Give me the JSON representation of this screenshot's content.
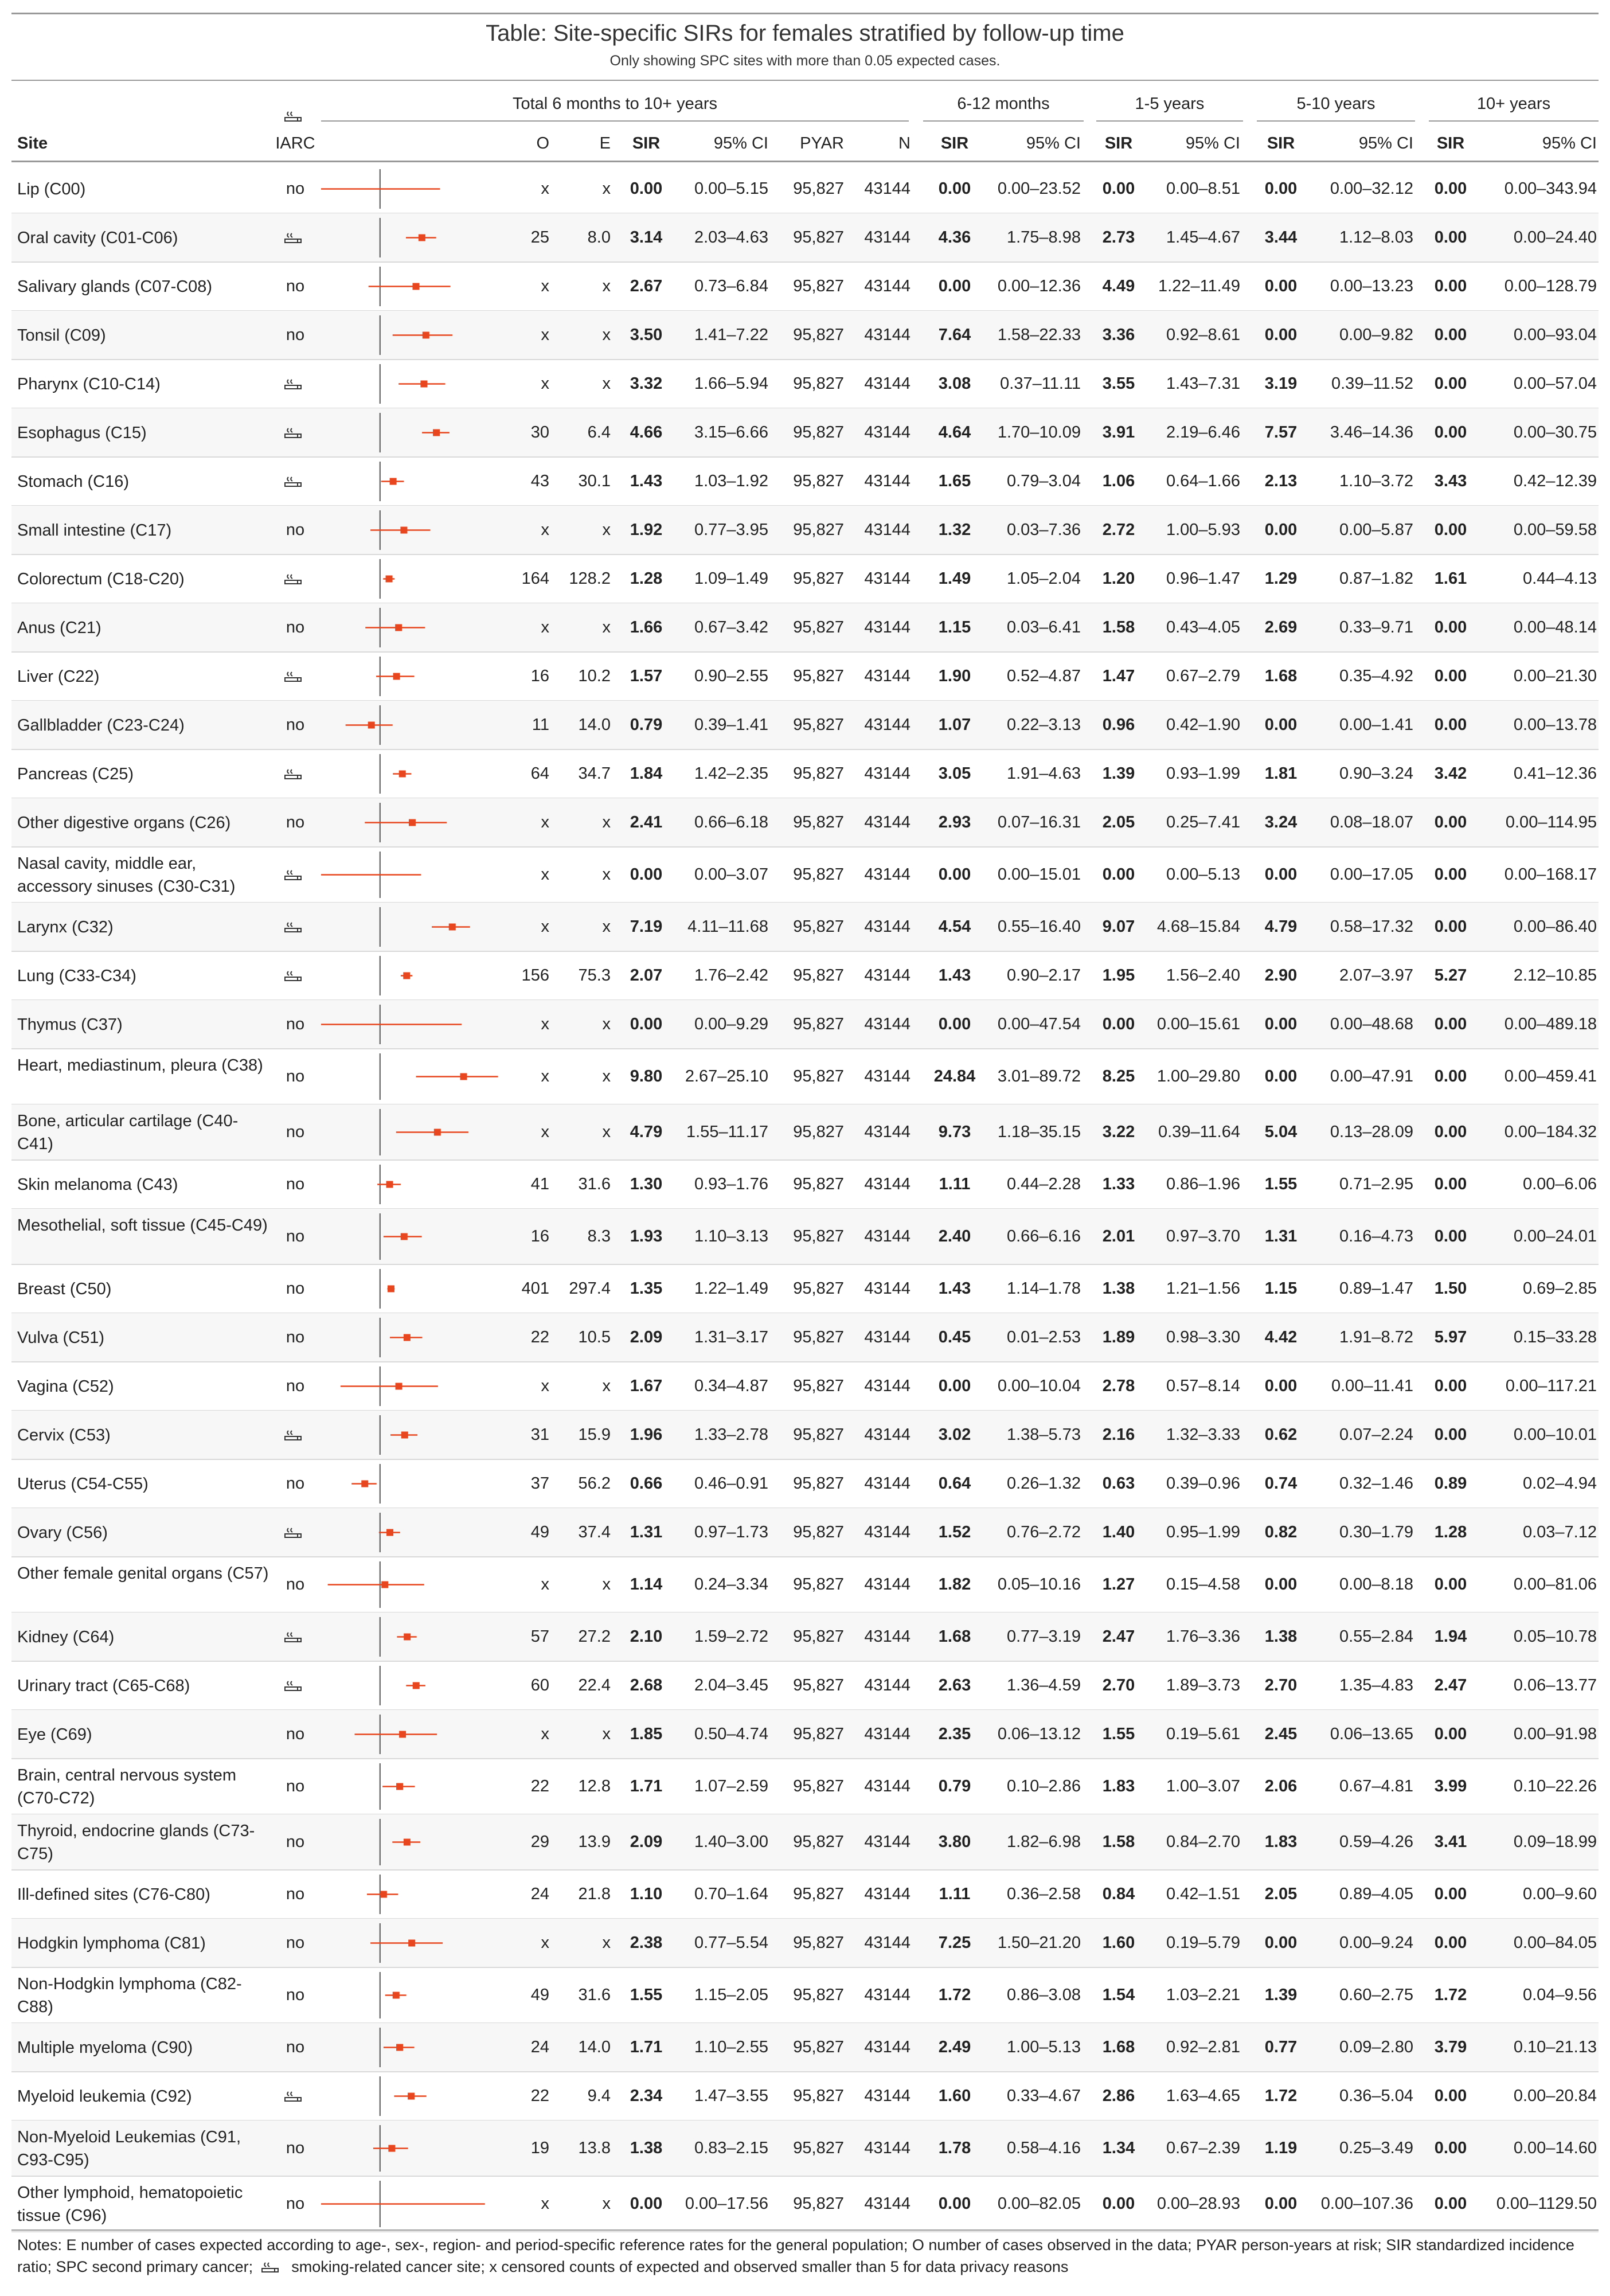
{
  "title": "Table: Site-specific SIRs for females stratified by follow-up time",
  "subtitle": "Only showing SPC sites with more than 0.05 expected cases.",
  "groups": {
    "total": "Total 6 months to 10+ years",
    "g1": "6-12 months",
    "g2": "1-5 years",
    "g3": "5-10 years",
    "g4": "10+ years"
  },
  "columns": {
    "site": "Site",
    "iarc": "IARC",
    "o": "O",
    "e": "E",
    "sir": "SIR",
    "ci": "95% CI",
    "pyar": "PYAR",
    "n": "N"
  },
  "icons": {
    "smoking": "smoking-icon"
  },
  "colors": {
    "marker": "#e8461e",
    "ref_line": "#555555",
    "rule": "#999999",
    "row_line": "#d9d9d9"
  },
  "forest_data": {
    "type": "forest",
    "xscale": "log",
    "reference_value": 1
  },
  "rows": [
    {
      "site": "Lip (C00)",
      "iarc": "no",
      "o": "x",
      "e": "x",
      "sir": "0.00",
      "ci": "0.00–5.15",
      "pyar": "95,827",
      "n": "43144",
      "sir1": "0.00",
      "ci1": "0.00–23.52",
      "sir2": "0.00",
      "ci2": "0.00–8.51",
      "sir3": "0.00",
      "ci3": "0.00–32.12",
      "sir4": "0.00",
      "ci4": "0.00–343.94"
    },
    {
      "site": "Oral cavity (C01-C06)",
      "iarc": "smoking",
      "o": "25",
      "e": "8.0",
      "sir": "3.14",
      "ci": "2.03–4.63",
      "pyar": "95,827",
      "n": "43144",
      "sir1": "4.36",
      "ci1": "1.75–8.98",
      "sir2": "2.73",
      "ci2": "1.45–4.67",
      "sir3": "3.44",
      "ci3": "1.12–8.03",
      "sir4": "0.00",
      "ci4": "0.00–24.40"
    },
    {
      "site": "Salivary glands (C07-C08)",
      "iarc": "no",
      "o": "x",
      "e": "x",
      "sir": "2.67",
      "ci": "0.73–6.84",
      "pyar": "95,827",
      "n": "43144",
      "sir1": "0.00",
      "ci1": "0.00–12.36",
      "sir2": "4.49",
      "ci2": "1.22–11.49",
      "sir3": "0.00",
      "ci3": "0.00–13.23",
      "sir4": "0.00",
      "ci4": "0.00–128.79"
    },
    {
      "site": "Tonsil (C09)",
      "iarc": "no",
      "o": "x",
      "e": "x",
      "sir": "3.50",
      "ci": "1.41–7.22",
      "pyar": "95,827",
      "n": "43144",
      "sir1": "7.64",
      "ci1": "1.58–22.33",
      "sir2": "3.36",
      "ci2": "0.92–8.61",
      "sir3": "0.00",
      "ci3": "0.00–9.82",
      "sir4": "0.00",
      "ci4": "0.00–93.04"
    },
    {
      "site": "Pharynx (C10-C14)",
      "iarc": "smoking",
      "o": "x",
      "e": "x",
      "sir": "3.32",
      "ci": "1.66–5.94",
      "pyar": "95,827",
      "n": "43144",
      "sir1": "3.08",
      "ci1": "0.37–11.11",
      "sir2": "3.55",
      "ci2": "1.43–7.31",
      "sir3": "3.19",
      "ci3": "0.39–11.52",
      "sir4": "0.00",
      "ci4": "0.00–57.04"
    },
    {
      "site": "Esophagus (C15)",
      "iarc": "smoking",
      "o": "30",
      "e": "6.4",
      "sir": "4.66",
      "ci": "3.15–6.66",
      "pyar": "95,827",
      "n": "43144",
      "sir1": "4.64",
      "ci1": "1.70–10.09",
      "sir2": "3.91",
      "ci2": "2.19–6.46",
      "sir3": "7.57",
      "ci3": "3.46–14.36",
      "sir4": "0.00",
      "ci4": "0.00–30.75"
    },
    {
      "site": "Stomach (C16)",
      "iarc": "smoking",
      "o": "43",
      "e": "30.1",
      "sir": "1.43",
      "ci": "1.03–1.92",
      "pyar": "95,827",
      "n": "43144",
      "sir1": "1.65",
      "ci1": "0.79–3.04",
      "sir2": "1.06",
      "ci2": "0.64–1.66",
      "sir3": "2.13",
      "ci3": "1.10–3.72",
      "sir4": "3.43",
      "ci4": "0.42–12.39"
    },
    {
      "site": "Small intestine (C17)",
      "iarc": "no",
      "o": "x",
      "e": "x",
      "sir": "1.92",
      "ci": "0.77–3.95",
      "pyar": "95,827",
      "n": "43144",
      "sir1": "1.32",
      "ci1": "0.03–7.36",
      "sir2": "2.72",
      "ci2": "1.00–5.93",
      "sir3": "0.00",
      "ci3": "0.00–5.87",
      "sir4": "0.00",
      "ci4": "0.00–59.58"
    },
    {
      "site": "Colorectum (C18-C20)",
      "iarc": "smoking",
      "o": "164",
      "e": "128.2",
      "sir": "1.28",
      "ci": "1.09–1.49",
      "pyar": "95,827",
      "n": "43144",
      "sir1": "1.49",
      "ci1": "1.05–2.04",
      "sir2": "1.20",
      "ci2": "0.96–1.47",
      "sir3": "1.29",
      "ci3": "0.87–1.82",
      "sir4": "1.61",
      "ci4": "0.44–4.13"
    },
    {
      "site": "Anus (C21)",
      "iarc": "no",
      "o": "x",
      "e": "x",
      "sir": "1.66",
      "ci": "0.67–3.42",
      "pyar": "95,827",
      "n": "43144",
      "sir1": "1.15",
      "ci1": "0.03–6.41",
      "sir2": "1.58",
      "ci2": "0.43–4.05",
      "sir3": "2.69",
      "ci3": "0.33–9.71",
      "sir4": "0.00",
      "ci4": "0.00–48.14"
    },
    {
      "site": "Liver (C22)",
      "iarc": "smoking",
      "o": "16",
      "e": "10.2",
      "sir": "1.57",
      "ci": "0.90–2.55",
      "pyar": "95,827",
      "n": "43144",
      "sir1": "1.90",
      "ci1": "0.52–4.87",
      "sir2": "1.47",
      "ci2": "0.67–2.79",
      "sir3": "1.68",
      "ci3": "0.35–4.92",
      "sir4": "0.00",
      "ci4": "0.00–21.30"
    },
    {
      "site": "Gallbladder (C23-C24)",
      "iarc": "no",
      "o": "11",
      "e": "14.0",
      "sir": "0.79",
      "ci": "0.39–1.41",
      "pyar": "95,827",
      "n": "43144",
      "sir1": "1.07",
      "ci1": "0.22–3.13",
      "sir2": "0.96",
      "ci2": "0.42–1.90",
      "sir3": "0.00",
      "ci3": "0.00–1.41",
      "sir4": "0.00",
      "ci4": "0.00–13.78"
    },
    {
      "site": "Pancreas (C25)",
      "iarc": "smoking",
      "o": "64",
      "e": "34.7",
      "sir": "1.84",
      "ci": "1.42–2.35",
      "pyar": "95,827",
      "n": "43144",
      "sir1": "3.05",
      "ci1": "1.91–4.63",
      "sir2": "1.39",
      "ci2": "0.93–1.99",
      "sir3": "1.81",
      "ci3": "0.90–3.24",
      "sir4": "3.42",
      "ci4": "0.41–12.36"
    },
    {
      "site": "Other digestive organs (C26)",
      "iarc": "no",
      "o": "x",
      "e": "x",
      "sir": "2.41",
      "ci": "0.66–6.18",
      "pyar": "95,827",
      "n": "43144",
      "sir1": "2.93",
      "ci1": "0.07–16.31",
      "sir2": "2.05",
      "ci2": "0.25–7.41",
      "sir3": "3.24",
      "ci3": "0.08–18.07",
      "sir4": "0.00",
      "ci4": "0.00–114.95"
    },
    {
      "site": "Nasal cavity, middle ear, accessory sinuses (C30-C31)",
      "iarc": "smoking",
      "o": "x",
      "e": "x",
      "sir": "0.00",
      "ci": "0.00–3.07",
      "pyar": "95,827",
      "n": "43144",
      "sir1": "0.00",
      "ci1": "0.00–15.01",
      "sir2": "0.00",
      "ci2": "0.00–5.13",
      "sir3": "0.00",
      "ci3": "0.00–17.05",
      "sir4": "0.00",
      "ci4": "0.00–168.17"
    },
    {
      "site": "Larynx (C32)",
      "iarc": "smoking",
      "o": "x",
      "e": "x",
      "sir": "7.19",
      "ci": "4.11–11.68",
      "pyar": "95,827",
      "n": "43144",
      "sir1": "4.54",
      "ci1": "0.55–16.40",
      "sir2": "9.07",
      "ci2": "4.68–15.84",
      "sir3": "4.79",
      "ci3": "0.58–17.32",
      "sir4": "0.00",
      "ci4": "0.00–86.40"
    },
    {
      "site": "Lung (C33-C34)",
      "iarc": "smoking",
      "o": "156",
      "e": "75.3",
      "sir": "2.07",
      "ci": "1.76–2.42",
      "pyar": "95,827",
      "n": "43144",
      "sir1": "1.43",
      "ci1": "0.90–2.17",
      "sir2": "1.95",
      "ci2": "1.56–2.40",
      "sir3": "2.90",
      "ci3": "2.07–3.97",
      "sir4": "5.27",
      "ci4": "2.12–10.85"
    },
    {
      "site": "Thymus (C37)",
      "iarc": "no",
      "o": "x",
      "e": "x",
      "sir": "0.00",
      "ci": "0.00–9.29",
      "pyar": "95,827",
      "n": "43144",
      "sir1": "0.00",
      "ci1": "0.00–47.54",
      "sir2": "0.00",
      "ci2": "0.00–15.61",
      "sir3": "0.00",
      "ci3": "0.00–48.68",
      "sir4": "0.00",
      "ci4": "0.00–489.18"
    },
    {
      "site": "Heart, mediastinum, pleura (C38)",
      "iarc": "no",
      "o": "x",
      "e": "x",
      "sir": "9.80",
      "ci": "2.67–25.10",
      "pyar": "95,827",
      "n": "43144",
      "sir1": "24.84",
      "ci1": "3.01–89.72",
      "sir2": "8.25",
      "ci2": "1.00–29.80",
      "sir3": "0.00",
      "ci3": "0.00–47.91",
      "sir4": "0.00",
      "ci4": "0.00–459.41"
    },
    {
      "site": "Bone, articular cartilage (C40-C41)",
      "iarc": "no",
      "o": "x",
      "e": "x",
      "sir": "4.79",
      "ci": "1.55–11.17",
      "pyar": "95,827",
      "n": "43144",
      "sir1": "9.73",
      "ci1": "1.18–35.15",
      "sir2": "3.22",
      "ci2": "0.39–11.64",
      "sir3": "5.04",
      "ci3": "0.13–28.09",
      "sir4": "0.00",
      "ci4": "0.00–184.32"
    },
    {
      "site": "Skin melanoma (C43)",
      "iarc": "no",
      "o": "41",
      "e": "31.6",
      "sir": "1.30",
      "ci": "0.93–1.76",
      "pyar": "95,827",
      "n": "43144",
      "sir1": "1.11",
      "ci1": "0.44–2.28",
      "sir2": "1.33",
      "ci2": "0.86–1.96",
      "sir3": "1.55",
      "ci3": "0.71–2.95",
      "sir4": "0.00",
      "ci4": "0.00–6.06"
    },
    {
      "site": "Mesothelial, soft tissue (C45-C49)",
      "iarc": "no",
      "o": "16",
      "e": "8.3",
      "sir": "1.93",
      "ci": "1.10–3.13",
      "pyar": "95,827",
      "n": "43144",
      "sir1": "2.40",
      "ci1": "0.66–6.16",
      "sir2": "2.01",
      "ci2": "0.97–3.70",
      "sir3": "1.31",
      "ci3": "0.16–4.73",
      "sir4": "0.00",
      "ci4": "0.00–24.01"
    },
    {
      "site": "Breast (C50)",
      "iarc": "no",
      "o": "401",
      "e": "297.4",
      "sir": "1.35",
      "ci": "1.22–1.49",
      "pyar": "95,827",
      "n": "43144",
      "sir1": "1.43",
      "ci1": "1.14–1.78",
      "sir2": "1.38",
      "ci2": "1.21–1.56",
      "sir3": "1.15",
      "ci3": "0.89–1.47",
      "sir4": "1.50",
      "ci4": "0.69–2.85"
    },
    {
      "site": "Vulva (C51)",
      "iarc": "no",
      "o": "22",
      "e": "10.5",
      "sir": "2.09",
      "ci": "1.31–3.17",
      "pyar": "95,827",
      "n": "43144",
      "sir1": "0.45",
      "ci1": "0.01–2.53",
      "sir2": "1.89",
      "ci2": "0.98–3.30",
      "sir3": "4.42",
      "ci3": "1.91–8.72",
      "sir4": "5.97",
      "ci4": "0.15–33.28"
    },
    {
      "site": "Vagina (C52)",
      "iarc": "no",
      "o": "x",
      "e": "x",
      "sir": "1.67",
      "ci": "0.34–4.87",
      "pyar": "95,827",
      "n": "43144",
      "sir1": "0.00",
      "ci1": "0.00–10.04",
      "sir2": "2.78",
      "ci2": "0.57–8.14",
      "sir3": "0.00",
      "ci3": "0.00–11.41",
      "sir4": "0.00",
      "ci4": "0.00–117.21"
    },
    {
      "site": "Cervix (C53)",
      "iarc": "smoking",
      "o": "31",
      "e": "15.9",
      "sir": "1.96",
      "ci": "1.33–2.78",
      "pyar": "95,827",
      "n": "43144",
      "sir1": "3.02",
      "ci1": "1.38–5.73",
      "sir2": "2.16",
      "ci2": "1.32–3.33",
      "sir3": "0.62",
      "ci3": "0.07–2.24",
      "sir4": "0.00",
      "ci4": "0.00–10.01"
    },
    {
      "site": "Uterus (C54-C55)",
      "iarc": "no",
      "o": "37",
      "e": "56.2",
      "sir": "0.66",
      "ci": "0.46–0.91",
      "pyar": "95,827",
      "n": "43144",
      "sir1": "0.64",
      "ci1": "0.26–1.32",
      "sir2": "0.63",
      "ci2": "0.39–0.96",
      "sir3": "0.74",
      "ci3": "0.32–1.46",
      "sir4": "0.89",
      "ci4": "0.02–4.94"
    },
    {
      "site": "Ovary (C56)",
      "iarc": "smoking",
      "o": "49",
      "e": "37.4",
      "sir": "1.31",
      "ci": "0.97–1.73",
      "pyar": "95,827",
      "n": "43144",
      "sir1": "1.52",
      "ci1": "0.76–2.72",
      "sir2": "1.40",
      "ci2": "0.95–1.99",
      "sir3": "0.82",
      "ci3": "0.30–1.79",
      "sir4": "1.28",
      "ci4": "0.03–7.12"
    },
    {
      "site": "Other female genital organs (C57)",
      "iarc": "no",
      "o": "x",
      "e": "x",
      "sir": "1.14",
      "ci": "0.24–3.34",
      "pyar": "95,827",
      "n": "43144",
      "sir1": "1.82",
      "ci1": "0.05–10.16",
      "sir2": "1.27",
      "ci2": "0.15–4.58",
      "sir3": "0.00",
      "ci3": "0.00–8.18",
      "sir4": "0.00",
      "ci4": "0.00–81.06"
    },
    {
      "site": "Kidney (C64)",
      "iarc": "smoking",
      "o": "57",
      "e": "27.2",
      "sir": "2.10",
      "ci": "1.59–2.72",
      "pyar": "95,827",
      "n": "43144",
      "sir1": "1.68",
      "ci1": "0.77–3.19",
      "sir2": "2.47",
      "ci2": "1.76–3.36",
      "sir3": "1.38",
      "ci3": "0.55–2.84",
      "sir4": "1.94",
      "ci4": "0.05–10.78"
    },
    {
      "site": "Urinary tract (C65-C68)",
      "iarc": "smoking",
      "o": "60",
      "e": "22.4",
      "sir": "2.68",
      "ci": "2.04–3.45",
      "pyar": "95,827",
      "n": "43144",
      "sir1": "2.63",
      "ci1": "1.36–4.59",
      "sir2": "2.70",
      "ci2": "1.89–3.73",
      "sir3": "2.70",
      "ci3": "1.35–4.83",
      "sir4": "2.47",
      "ci4": "0.06–13.77"
    },
    {
      "site": "Eye (C69)",
      "iarc": "no",
      "o": "x",
      "e": "x",
      "sir": "1.85",
      "ci": "0.50–4.74",
      "pyar": "95,827",
      "n": "43144",
      "sir1": "2.35",
      "ci1": "0.06–13.12",
      "sir2": "1.55",
      "ci2": "0.19–5.61",
      "sir3": "2.45",
      "ci3": "0.06–13.65",
      "sir4": "0.00",
      "ci4": "0.00–91.98"
    },
    {
      "site": "Brain, central nervous system (C70-C72)",
      "iarc": "no",
      "o": "22",
      "e": "12.8",
      "sir": "1.71",
      "ci": "1.07–2.59",
      "pyar": "95,827",
      "n": "43144",
      "sir1": "0.79",
      "ci1": "0.10–2.86",
      "sir2": "1.83",
      "ci2": "1.00–3.07",
      "sir3": "2.06",
      "ci3": "0.67–4.81",
      "sir4": "3.99",
      "ci4": "0.10–22.26"
    },
    {
      "site": "Thyroid, endocrine glands (C73-C75)",
      "iarc": "no",
      "o": "29",
      "e": "13.9",
      "sir": "2.09",
      "ci": "1.40–3.00",
      "pyar": "95,827",
      "n": "43144",
      "sir1": "3.80",
      "ci1": "1.82–6.98",
      "sir2": "1.58",
      "ci2": "0.84–2.70",
      "sir3": "1.83",
      "ci3": "0.59–4.26",
      "sir4": "3.41",
      "ci4": "0.09–18.99"
    },
    {
      "site": "Ill-defined sites (C76-C80)",
      "iarc": "no",
      "o": "24",
      "e": "21.8",
      "sir": "1.10",
      "ci": "0.70–1.64",
      "pyar": "95,827",
      "n": "43144",
      "sir1": "1.11",
      "ci1": "0.36–2.58",
      "sir2": "0.84",
      "ci2": "0.42–1.51",
      "sir3": "2.05",
      "ci3": "0.89–4.05",
      "sir4": "0.00",
      "ci4": "0.00–9.60"
    },
    {
      "site": "Hodgkin lymphoma (C81)",
      "iarc": "no",
      "o": "x",
      "e": "x",
      "sir": "2.38",
      "ci": "0.77–5.54",
      "pyar": "95,827",
      "n": "43144",
      "sir1": "7.25",
      "ci1": "1.50–21.20",
      "sir2": "1.60",
      "ci2": "0.19–5.79",
      "sir3": "0.00",
      "ci3": "0.00–9.24",
      "sir4": "0.00",
      "ci4": "0.00–84.05"
    },
    {
      "site": "Non-Hodgkin lymphoma (C82-C88)",
      "iarc": "no",
      "o": "49",
      "e": "31.6",
      "sir": "1.55",
      "ci": "1.15–2.05",
      "pyar": "95,827",
      "n": "43144",
      "sir1": "1.72",
      "ci1": "0.86–3.08",
      "sir2": "1.54",
      "ci2": "1.03–2.21",
      "sir3": "1.39",
      "ci3": "0.60–2.75",
      "sir4": "1.72",
      "ci4": "0.04–9.56"
    },
    {
      "site": "Multiple myeloma (C90)",
      "iarc": "no",
      "o": "24",
      "e": "14.0",
      "sir": "1.71",
      "ci": "1.10–2.55",
      "pyar": "95,827",
      "n": "43144",
      "sir1": "2.49",
      "ci1": "1.00–5.13",
      "sir2": "1.68",
      "ci2": "0.92–2.81",
      "sir3": "0.77",
      "ci3": "0.09–2.80",
      "sir4": "3.79",
      "ci4": "0.10–21.13"
    },
    {
      "site": "Myeloid leukemia (C92)",
      "iarc": "smoking",
      "o": "22",
      "e": "9.4",
      "sir": "2.34",
      "ci": "1.47–3.55",
      "pyar": "95,827",
      "n": "43144",
      "sir1": "1.60",
      "ci1": "0.33–4.67",
      "sir2": "2.86",
      "ci2": "1.63–4.65",
      "sir3": "1.72",
      "ci3": "0.36–5.04",
      "sir4": "0.00",
      "ci4": "0.00–20.84"
    },
    {
      "site": "Non-Myeloid Leukemias (C91, C93-C95)",
      "iarc": "no",
      "o": "19",
      "e": "13.8",
      "sir": "1.38",
      "ci": "0.83–2.15",
      "pyar": "95,827",
      "n": "43144",
      "sir1": "1.78",
      "ci1": "0.58–4.16",
      "sir2": "1.34",
      "ci2": "0.67–2.39",
      "sir3": "1.19",
      "ci3": "0.25–3.49",
      "sir4": "0.00",
      "ci4": "0.00–14.60"
    },
    {
      "site": "Other lymphoid, hematopoietic tissue (C96)",
      "iarc": "no",
      "o": "x",
      "e": "x",
      "sir": "0.00",
      "ci": "0.00–17.56",
      "pyar": "95,827",
      "n": "43144",
      "sir1": "0.00",
      "ci1": "0.00–82.05",
      "sir2": "0.00",
      "ci2": "0.00–28.93",
      "sir3": "0.00",
      "ci3": "0.00–107.36",
      "sir4": "0.00",
      "ci4": "0.00–1129.50"
    }
  ],
  "notes": {
    "before_icon": "Notes: E number of cases expected according to age-, sex-, region- and period-specific reference rates for the general population; O number of cases observed in the data; PYAR person-years at risk; SIR standardized incidence ratio; SPC second primary cancer;",
    "after_icon": "smoking-related cancer site; x censored counts of expected and observed smaller than 5 for data privacy reasons"
  }
}
